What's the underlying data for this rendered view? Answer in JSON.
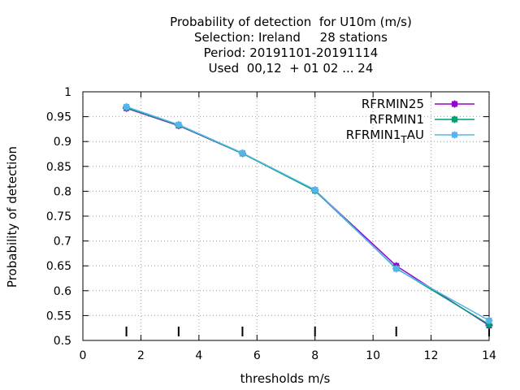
{
  "chart_data": {
    "type": "line",
    "title_lines": [
      "Probability of detection  for U10m (m/s)",
      "Selection: Ireland     28 stations",
      "Period: 20191101-20191114",
      "Used  00,12  + 01 02 ... 24"
    ],
    "xlabel": "thresholds m/s",
    "ylabel": "Probability of detection",
    "xlim": [
      0,
      14
    ],
    "ylim": [
      0.5,
      1
    ],
    "xticks": [
      0,
      2,
      4,
      6,
      8,
      10,
      12,
      14
    ],
    "yticks": [
      0.5,
      0.55,
      0.6,
      0.65,
      0.7,
      0.75,
      0.8,
      0.85,
      0.9,
      0.95,
      1
    ],
    "grid": true,
    "legend_position": "top-right",
    "threshold_marks": [
      1.5,
      3.3,
      5.5,
      8,
      10.8,
      14
    ],
    "series": [
      {
        "name": "RFRMIN25",
        "color": "#9400d3",
        "x": [
          1.5,
          3.3,
          5.5,
          8,
          10.8,
          14
        ],
        "y": [
          0.967,
          0.932,
          0.876,
          0.802,
          0.65,
          0.53
        ]
      },
      {
        "name": "RFRMIN1",
        "color": "#009e73",
        "x": [
          1.5,
          3.3,
          5.5,
          8,
          10.8,
          14
        ],
        "y": [
          0.968,
          0.933,
          0.876,
          0.801,
          0.645,
          0.532
        ]
      },
      {
        "name": "RFRMIN1",
        "name_subscript": "T",
        "name_suffix": "AU",
        "color": "#56b4e9",
        "x": [
          1.5,
          3.3,
          5.5,
          8,
          10.8,
          14
        ],
        "y": [
          0.97,
          0.934,
          0.877,
          0.803,
          0.644,
          0.54
        ]
      }
    ]
  }
}
